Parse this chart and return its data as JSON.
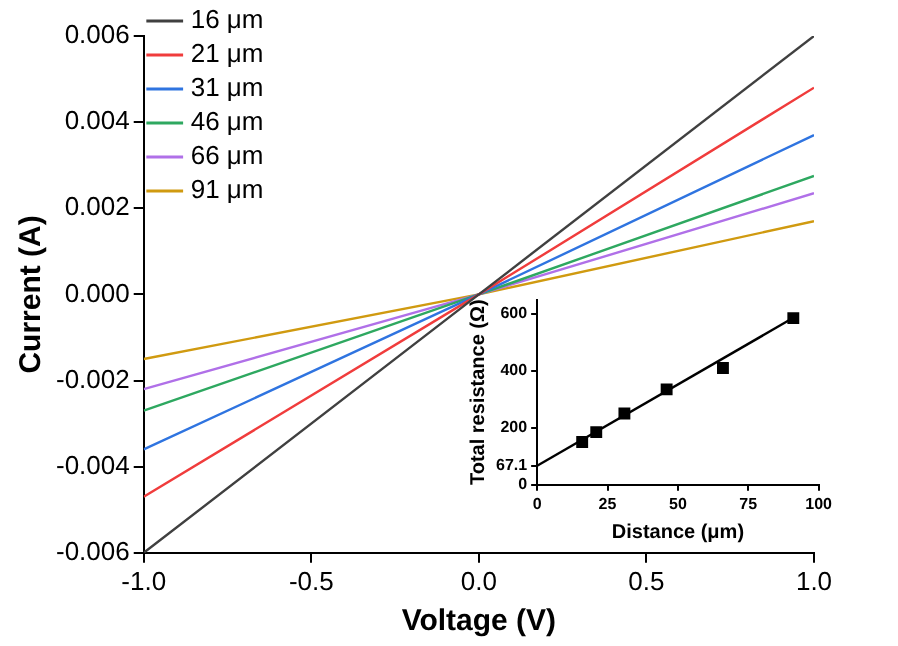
{
  "chart_data": [
    {
      "type": "line",
      "xlabel": "Voltage (V)",
      "ylabel": "Current (A)",
      "x": [
        -1,
        0,
        1
      ],
      "series": [
        {
          "name": "16 μm",
          "color": "#404040",
          "values": [
            -0.006,
            0,
            0.006
          ]
        },
        {
          "name": "21 μm",
          "color": "#f03c3c",
          "values": [
            -0.0047,
            0,
            0.0048
          ]
        },
        {
          "name": "31 μm",
          "color": "#2f74e0",
          "values": [
            -0.0036,
            0,
            0.0037
          ]
        },
        {
          "name": "46 μm",
          "color": "#2ea860",
          "values": [
            -0.0027,
            0,
            0.00275
          ]
        },
        {
          "name": "66 μm",
          "color": "#b070e8",
          "values": [
            -0.0022,
            0,
            0.00235
          ]
        },
        {
          "name": "91 μm",
          "color": "#d09a10",
          "values": [
            -0.0015,
            0,
            0.0017
          ]
        }
      ],
      "xlim": [
        -1,
        1
      ],
      "xticks": [
        {
          "value": -1,
          "label": "-1.0"
        },
        {
          "value": -0.5,
          "label": "-0.5"
        },
        {
          "value": 0,
          "label": "0.0"
        },
        {
          "value": 0.5,
          "label": "0.5"
        },
        {
          "value": 1,
          "label": "1.0"
        }
      ],
      "ylim": [
        -0.006,
        0.006
      ],
      "yticks": [
        {
          "value": -0.006,
          "label": "-0.006"
        },
        {
          "value": -0.004,
          "label": "-0.004"
        },
        {
          "value": -0.002,
          "label": "-0.002"
        },
        {
          "value": 0,
          "label": "0.000"
        },
        {
          "value": 0.002,
          "label": "0.002"
        },
        {
          "value": 0.004,
          "label": "0.004"
        },
        {
          "value": 0.006,
          "label": "0.006"
        }
      ],
      "grid": false,
      "legend": "top left",
      "marker": "none",
      "line_style": "solid"
    },
    {
      "type": "scatter",
      "xlabel": "Distance (μm)",
      "ylabel": "Total resistance (Ω)",
      "series": [
        {
          "color": "#000000",
          "marker": "square",
          "x": [
            16,
            21,
            31,
            46,
            66,
            91
          ],
          "values": [
            150,
            185,
            250,
            335,
            410,
            585
          ]
        },
        {
          "type": "line",
          "color": "#000000",
          "marker": "none",
          "x": [
            0,
            91
          ],
          "values": [
            67.1,
            586
          ]
        }
      ],
      "xlim": [
        0,
        100
      ],
      "xticks": [
        0,
        25,
        50,
        75,
        100
      ],
      "ylim": [
        0,
        650
      ],
      "yticks": [
        0,
        67.1,
        200,
        400,
        600
      ],
      "grid": false,
      "legend": false
    }
  ]
}
